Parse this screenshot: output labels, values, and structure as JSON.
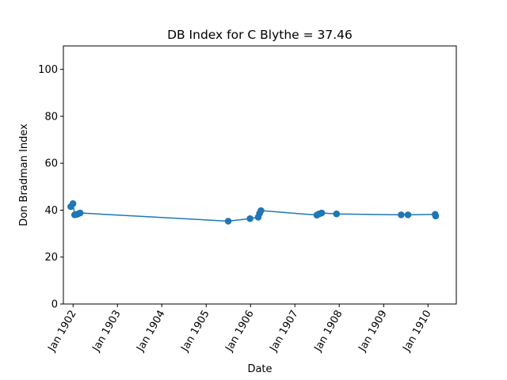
{
  "chart_data": {
    "type": "line",
    "title": "DB Index for C Blythe = 37.46",
    "xlabel": "Date",
    "ylabel": "Don Bradman Index",
    "x_axis_type": "date",
    "xlim": [
      "1901-10-13",
      "1910-08-22"
    ],
    "ylim": [
      0,
      110
    ],
    "yticks": [
      0,
      20,
      40,
      60,
      80,
      100
    ],
    "xticks": [
      "1902-01-01",
      "1903-01-01",
      "1904-01-01",
      "1905-01-01",
      "1906-01-01",
      "1907-01-01",
      "1908-01-01",
      "1909-01-01",
      "1910-01-01"
    ],
    "xtick_labels": [
      "Jan 1902",
      "Jan 1903",
      "Jan 1904",
      "Jan 1905",
      "Jan 1906",
      "Jan 1907",
      "Jan 1908",
      "Jan 1909",
      "Jan 1910"
    ],
    "grid": false,
    "series": [
      {
        "color": "#1f77b4",
        "marker": "circle",
        "x": [
          "1901-12-13",
          "1901-12-31",
          "1902-01-14",
          "1902-01-31",
          "1902-02-14",
          "1902-02-28",
          "1905-07-01",
          "1905-12-28",
          "1906-03-05",
          "1906-03-16",
          "1906-03-28",
          "1907-07-01",
          "1907-07-20",
          "1907-08-10",
          "1907-12-10",
          "1909-05-25",
          "1909-07-20",
          "1910-03-01",
          "1910-03-05"
        ],
        "y": [
          41.5,
          42.8,
          38.0,
          38.2,
          38.5,
          38.8,
          35.3,
          36.4,
          37.0,
          38.6,
          39.8,
          37.9,
          38.4,
          38.8,
          38.4,
          38.0,
          38.0,
          38.2,
          37.5
        ]
      }
    ]
  }
}
